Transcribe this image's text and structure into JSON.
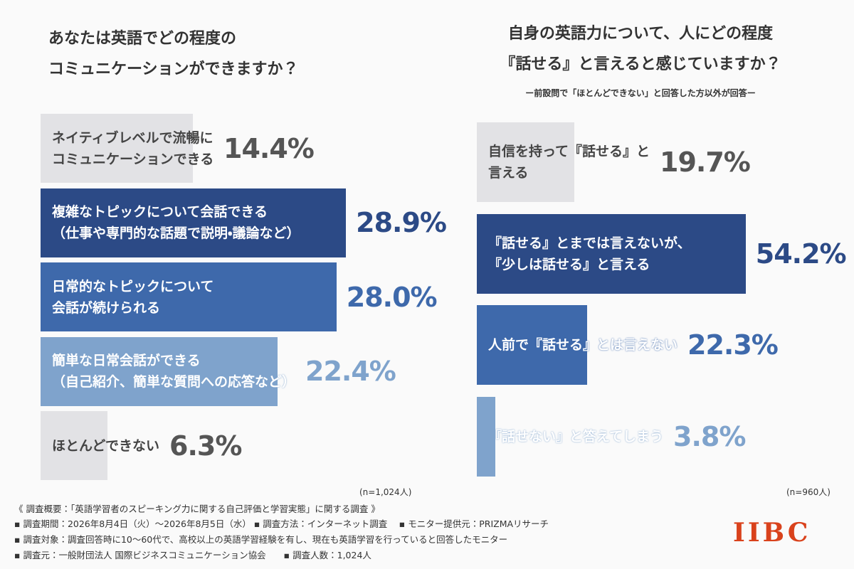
{
  "chart_data": [
    {
      "type": "barh",
      "title": "あなたは英語でどの程度の\nコミュニケーションができますか？",
      "categories": [
        "ネイティブレベルで流暢に\nコミュニケーションできる",
        "複雑なトピックについて会話できる\n（仕事や専門的な話題で説明・議論など）",
        "日常的なトピックについて\n会話が続けられる",
        "簡単な日常会話ができる\n（自己紹介、簡単な質問への応答など）",
        "ほとんどできない"
      ],
      "values": [
        14.4,
        28.9,
        28.0,
        22.4,
        6.3
      ],
      "value_labels": [
        "14.4%",
        "28.9%",
        "28.0%",
        "22.4%",
        "6.3%"
      ],
      "colors": [
        "#e2e2e5",
        "#2c4a86",
        "#3e69ab",
        "#7fa3cc",
        "#e2e2e5"
      ],
      "note": "(n=1,024人)"
    },
    {
      "type": "barh",
      "title": "自身の英語力について、人にどの程度\n『話せる』と言えると感じていますか？",
      "subtitle": "ー前設問で「ほとんどできない」と回答した方以外が回答ー",
      "categories": [
        "自信を持って『話せる』と\n言える",
        "『話せる』とまでは言えないが、\n『少しは話せる』と言える",
        "人前で『話せる』とは言えない",
        "『話せない』と答えてしまう"
      ],
      "values": [
        19.7,
        54.2,
        22.3,
        3.8
      ],
      "value_labels": [
        "19.7%",
        "54.2%",
        "22.3%",
        "3.8%"
      ],
      "colors": [
        "#e2e2e5",
        "#2c4a86",
        "#3e69ab",
        "#7fa3cc"
      ],
      "note": "(n=960人)"
    }
  ],
  "footer": {
    "lines": [
      "《 調査概要：「英語学習者のスピーキング力に関する自己評価と学習実態」に関する調査 》",
      "▪ 調査期間：2026年8月4日（火）～2026年8月5日（水） ▪ 調査方法：インターネット調査　 ▪ モニター提供元：PRIZMAリサーチ",
      "▪ 調査対象：調査回答時に10～60代で、高校以上の英語学習経験を有し、現在も英語学習を行っていると回答したモニター",
      "▪ 調査元：一般財団法人 国際ビジネスコミュニケーション協会　　▪ 調査人数：1,024人"
    ],
    "logo": "IIBC"
  }
}
